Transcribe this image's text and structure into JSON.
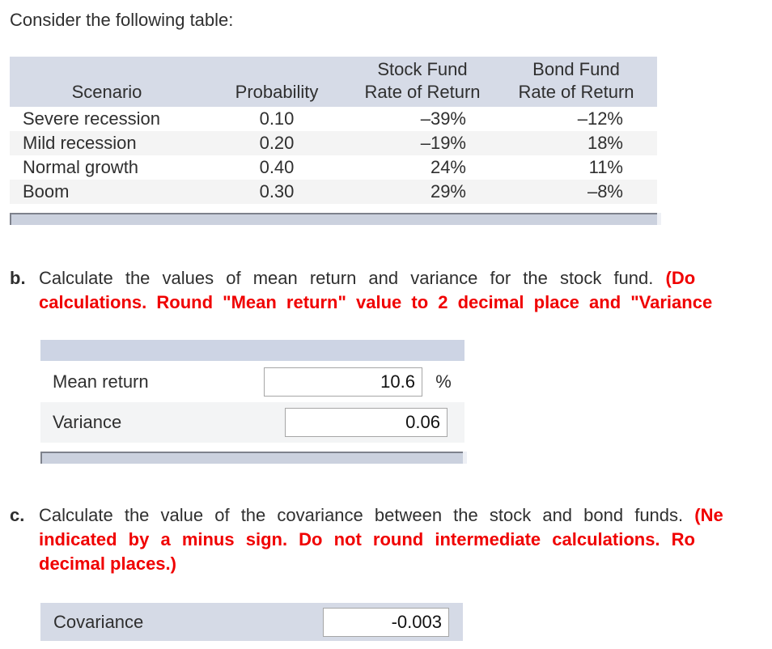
{
  "colors": {
    "table_header_band": "#d6dbe7",
    "answer_header_band": "#cdd4e4",
    "row_alternate": "#f4f4f4",
    "scrollbar_thumb": "#cbd1de",
    "scrollbar_border": "#7e828c",
    "red_text": "#f00000",
    "body_text": "#2f2f2f"
  },
  "intro": "Consider the following table:",
  "table": {
    "columns": {
      "scenario": {
        "top": "",
        "label": "Scenario"
      },
      "probability": {
        "top": "",
        "label": "Probability"
      },
      "stock": {
        "top": "Stock Fund",
        "label": "Rate of Return"
      },
      "bond": {
        "top": "Bond Fund",
        "label": "Rate of Return"
      }
    },
    "rows": [
      {
        "scenario": "Severe recession",
        "probability": "0.10",
        "stock": "–39%",
        "bond": "–12%"
      },
      {
        "scenario": "Mild recession",
        "probability": "0.20",
        "stock": "–19%",
        "bond": "18%"
      },
      {
        "scenario": "Normal growth",
        "probability": "0.40",
        "stock": "24%",
        "bond": "11%"
      },
      {
        "scenario": "Boom",
        "probability": "0.30",
        "stock": "29%",
        "bond": "–8%"
      }
    ]
  },
  "section_b": {
    "marker": "b.",
    "line1_black": "Calculate the values of mean return and variance for the stock fund.",
    "line1_red": "(Do",
    "line2_red": "calculations. Round \"Mean return\" value to 2 decimal place and \"Variance",
    "mean": {
      "label": "Mean return",
      "value": "10.6",
      "suffix": "%"
    },
    "variance": {
      "label": "Variance",
      "value": "0.06"
    }
  },
  "section_c": {
    "marker": "c.",
    "line1_black": "Calculate the value of the covariance between the stock and bond funds.",
    "line1_red": "(Ne",
    "line2_red": "indicated by a minus sign. Do not round intermediate calculations. Ro",
    "line3_red": "decimal places.)",
    "covariance": {
      "label": "Covariance",
      "value": "-0.003"
    }
  }
}
